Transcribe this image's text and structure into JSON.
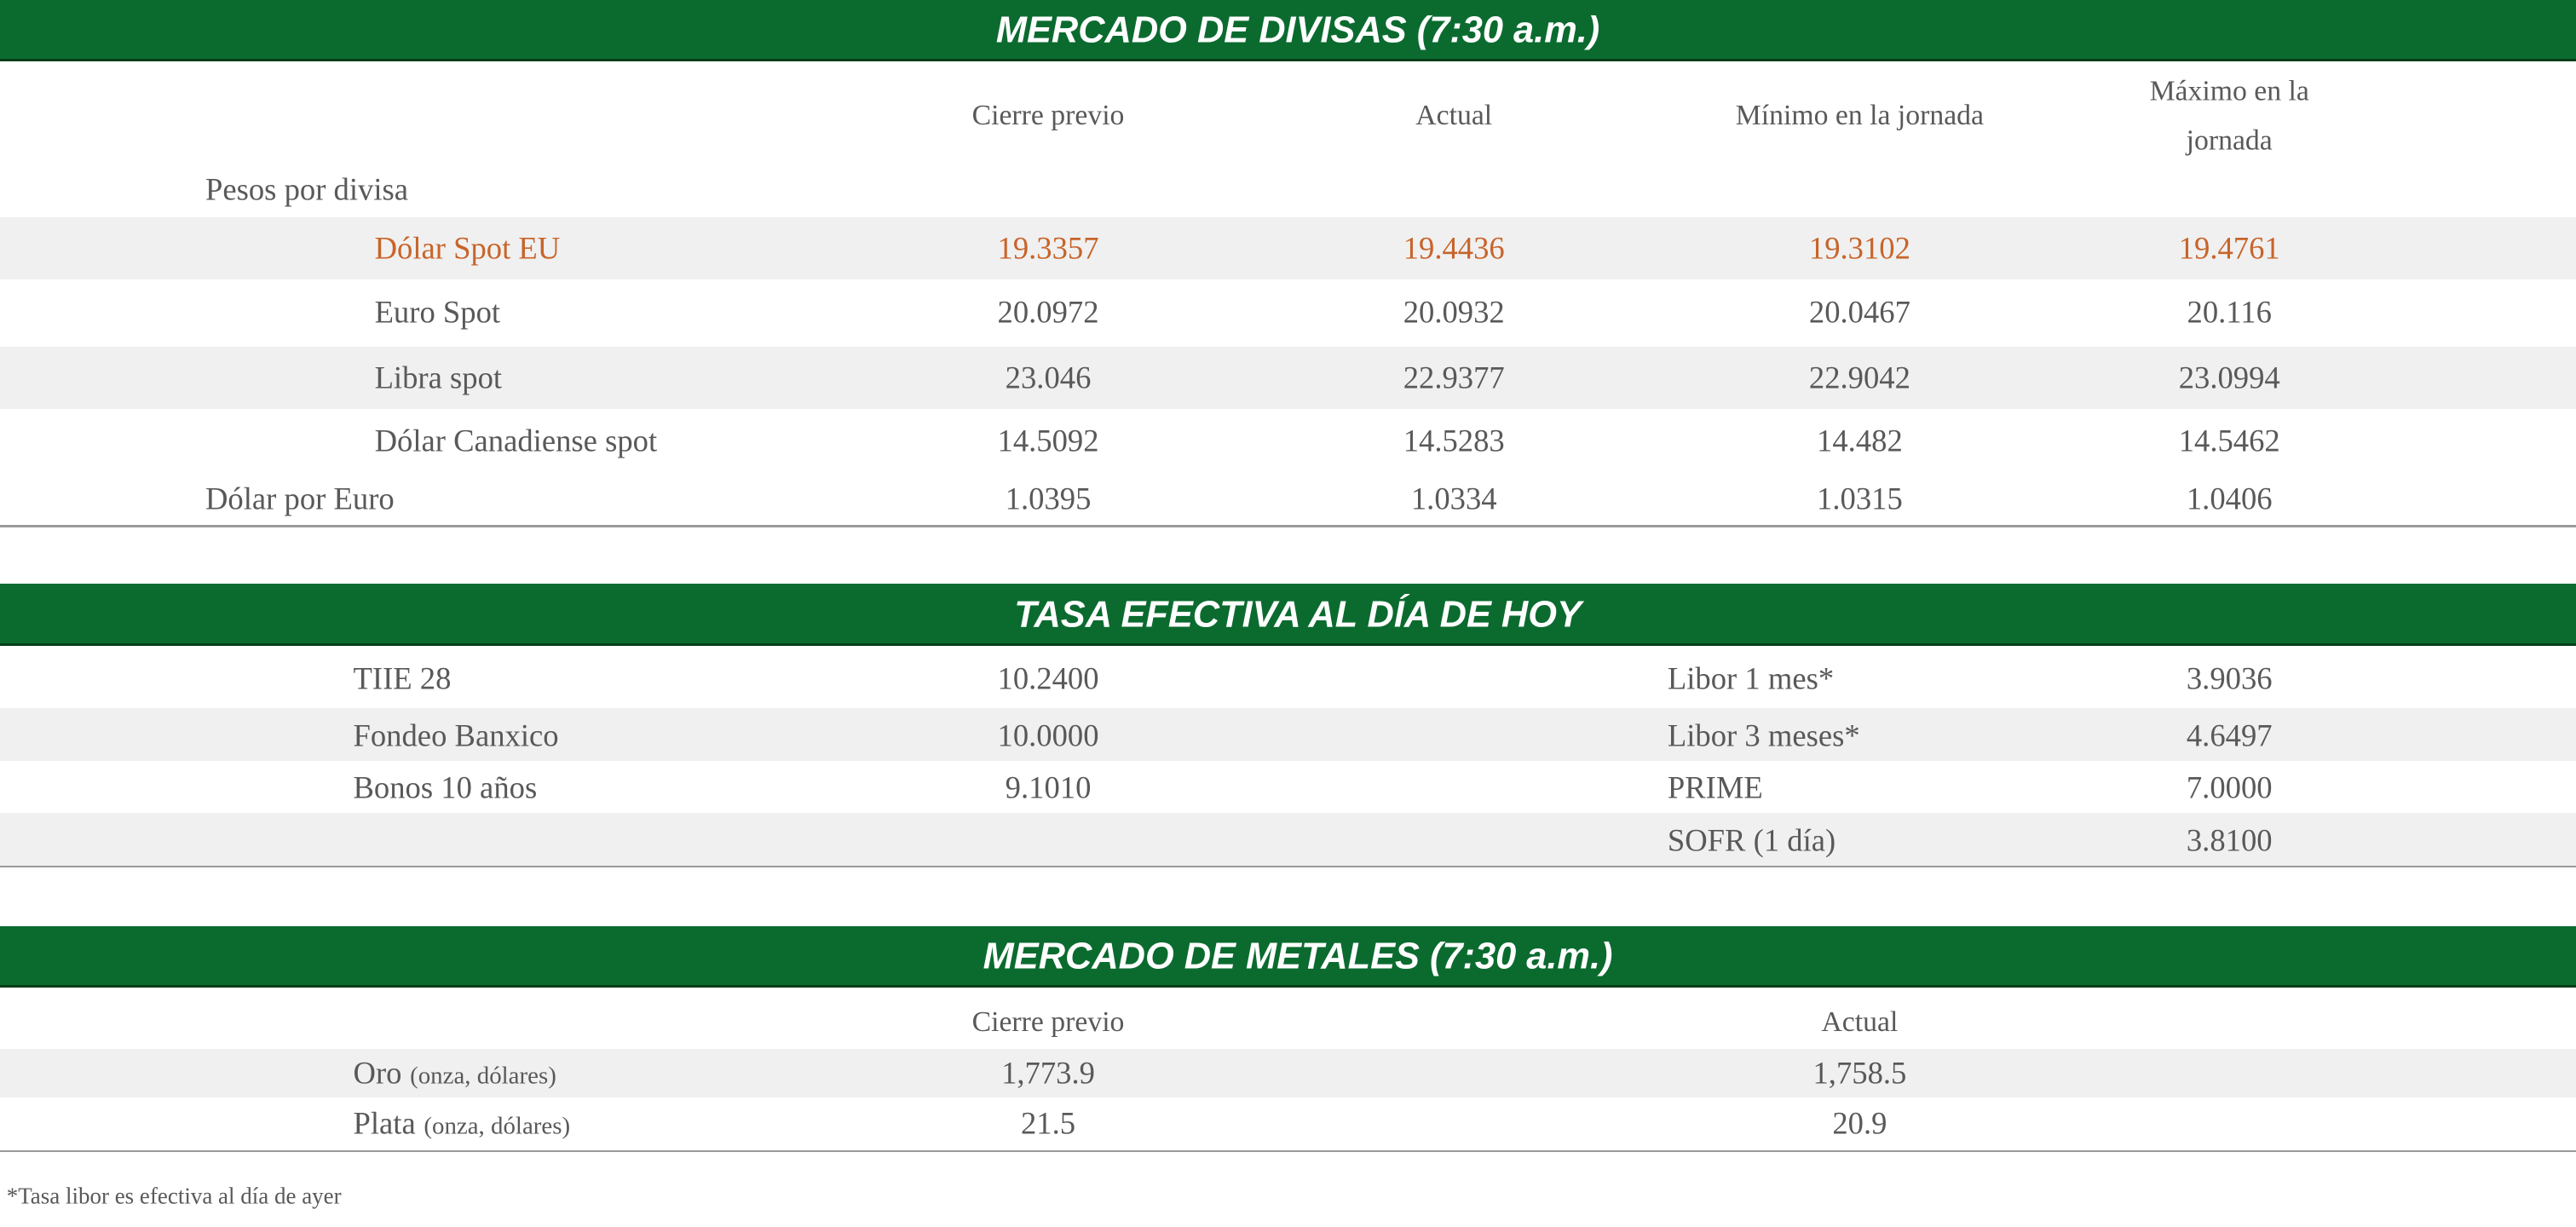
{
  "divisas": {
    "title": "MERCADO DE DIVISAS (7:30 a.m.)",
    "columns": [
      "Cierre previo",
      "Actual",
      "Mínimo en la jornada",
      "Máximo en la jornada"
    ],
    "group_label": "Pesos por divisa",
    "rows": [
      [
        "Dólar Spot EU",
        "19.3357",
        "19.4436",
        "19.3102",
        "19.4761"
      ],
      [
        "Euro Spot",
        "20.0972",
        "20.0932",
        "20.0467",
        "20.116"
      ],
      [
        "Libra spot",
        "23.046",
        "22.9377",
        "22.9042",
        "23.0994"
      ],
      [
        "Dólar Canadiense spot",
        "14.5092",
        "14.5283",
        "14.482",
        "14.5462"
      ],
      [
        "Dólar por Euro",
        "1.0395",
        "1.0334",
        "1.0315",
        "1.0406"
      ]
    ]
  },
  "tasa": {
    "title": "TASA EFECTIVA AL DÍA DE HOY",
    "left": [
      [
        "TIIE 28",
        "10.2400"
      ],
      [
        "Fondeo Banxico",
        "10.0000"
      ],
      [
        "Bonos 10 años",
        "9.1010"
      ]
    ],
    "right": [
      [
        "Libor 1 mes*",
        "3.9036"
      ],
      [
        "Libor 3 meses*",
        "4.6497"
      ],
      [
        "PRIME",
        "7.0000"
      ],
      [
        "SOFR (1 día)",
        "3.8100"
      ]
    ]
  },
  "metales": {
    "title": "MERCADO DE METALES (7:30 a.m.)",
    "columns": [
      "Cierre previo",
      "Actual"
    ],
    "rows": [
      {
        "label": "Oro",
        "unit": "(onza, dólares)",
        "values": [
          "1,773.9",
          "1,758.5"
        ]
      },
      {
        "label": "Plata",
        "unit": "(onza, dólares)",
        "values": [
          "21.5",
          "20.9"
        ]
      }
    ]
  },
  "footnote": "*Tasa libor es efectiva al día de ayer"
}
